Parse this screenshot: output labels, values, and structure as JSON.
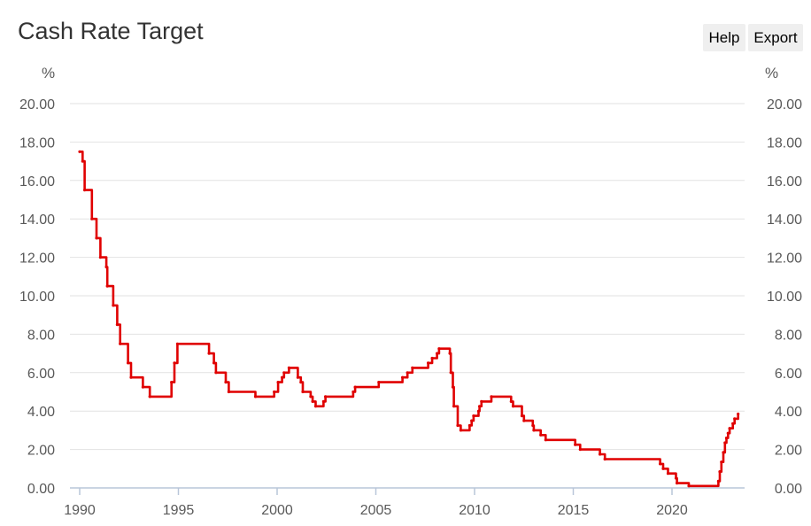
{
  "header": {
    "title": "Cash Rate Target",
    "help_label": "Help",
    "export_label": "Export"
  },
  "colors": {
    "series": "#e00000",
    "grid": "#e2e2e2",
    "axis": "#b9c6d9",
    "text": "#595959"
  },
  "chart_data": {
    "type": "line",
    "title": "Cash Rate Target",
    "ylabel_left": "%",
    "ylabel_right": "%",
    "ylim": [
      0,
      20
    ],
    "xlim": [
      1990,
      2023.5
    ],
    "y_ticks": [
      "0.00",
      "2.00",
      "4.00",
      "6.00",
      "8.00",
      "10.00",
      "12.00",
      "14.00",
      "16.00",
      "18.00",
      "20.00"
    ],
    "x_ticks": [
      "1990",
      "1995",
      "2000",
      "2005",
      "2010",
      "2015",
      "2020"
    ],
    "grid": true,
    "series": [
      {
        "step": true,
        "points": [
          [
            1990.0,
            17.5
          ],
          [
            1990.15,
            17.0
          ],
          [
            1990.25,
            15.5
          ],
          [
            1990.62,
            14.0
          ],
          [
            1990.85,
            13.0
          ],
          [
            1991.05,
            12.0
          ],
          [
            1991.35,
            11.5
          ],
          [
            1991.4,
            10.5
          ],
          [
            1991.7,
            9.5
          ],
          [
            1991.9,
            8.5
          ],
          [
            1992.05,
            7.5
          ],
          [
            1992.45,
            6.5
          ],
          [
            1992.6,
            5.75
          ],
          [
            1993.2,
            5.25
          ],
          [
            1993.55,
            4.75
          ],
          [
            1994.65,
            5.5
          ],
          [
            1994.8,
            6.5
          ],
          [
            1994.95,
            7.5
          ],
          [
            1996.55,
            7.0
          ],
          [
            1996.8,
            6.5
          ],
          [
            1996.9,
            6.0
          ],
          [
            1997.4,
            5.5
          ],
          [
            1997.55,
            5.0
          ],
          [
            1998.9,
            4.75
          ],
          [
            1999.85,
            5.0
          ],
          [
            2000.05,
            5.5
          ],
          [
            2000.25,
            5.75
          ],
          [
            2000.35,
            6.0
          ],
          [
            2000.6,
            6.25
          ],
          [
            2001.05,
            5.75
          ],
          [
            2001.2,
            5.5
          ],
          [
            2001.3,
            5.0
          ],
          [
            2001.7,
            4.75
          ],
          [
            2001.8,
            4.5
          ],
          [
            2001.95,
            4.25
          ],
          [
            2002.35,
            4.5
          ],
          [
            2002.45,
            4.75
          ],
          [
            2003.85,
            5.0
          ],
          [
            2003.95,
            5.25
          ],
          [
            2005.15,
            5.5
          ],
          [
            2006.35,
            5.75
          ],
          [
            2006.6,
            6.0
          ],
          [
            2006.85,
            6.25
          ],
          [
            2007.65,
            6.5
          ],
          [
            2007.85,
            6.75
          ],
          [
            2008.1,
            7.0
          ],
          [
            2008.2,
            7.25
          ],
          [
            2008.75,
            7.0
          ],
          [
            2008.8,
            6.0
          ],
          [
            2008.9,
            5.25
          ],
          [
            2008.95,
            4.25
          ],
          [
            2009.15,
            3.25
          ],
          [
            2009.3,
            3.0
          ],
          [
            2009.75,
            3.25
          ],
          [
            2009.85,
            3.5
          ],
          [
            2009.95,
            3.75
          ],
          [
            2010.2,
            4.0
          ],
          [
            2010.25,
            4.25
          ],
          [
            2010.35,
            4.5
          ],
          [
            2010.85,
            4.75
          ],
          [
            2011.85,
            4.5
          ],
          [
            2011.95,
            4.25
          ],
          [
            2012.4,
            3.75
          ],
          [
            2012.5,
            3.5
          ],
          [
            2012.95,
            3.25
          ],
          [
            2013.0,
            3.0
          ],
          [
            2013.35,
            2.75
          ],
          [
            2013.6,
            2.5
          ],
          [
            2015.1,
            2.25
          ],
          [
            2015.35,
            2.0
          ],
          [
            2016.35,
            1.75
          ],
          [
            2016.6,
            1.5
          ],
          [
            2019.4,
            1.25
          ],
          [
            2019.55,
            1.0
          ],
          [
            2019.8,
            0.75
          ],
          [
            2020.2,
            0.5
          ],
          [
            2020.25,
            0.25
          ],
          [
            2020.85,
            0.1
          ],
          [
            2022.35,
            0.35
          ],
          [
            2022.42,
            0.85
          ],
          [
            2022.5,
            1.35
          ],
          [
            2022.6,
            1.85
          ],
          [
            2022.68,
            2.35
          ],
          [
            2022.76,
            2.6
          ],
          [
            2022.84,
            2.85
          ],
          [
            2022.92,
            3.1
          ],
          [
            2023.08,
            3.35
          ],
          [
            2023.17,
            3.6
          ],
          [
            2023.35,
            3.85
          ]
        ]
      }
    ]
  }
}
